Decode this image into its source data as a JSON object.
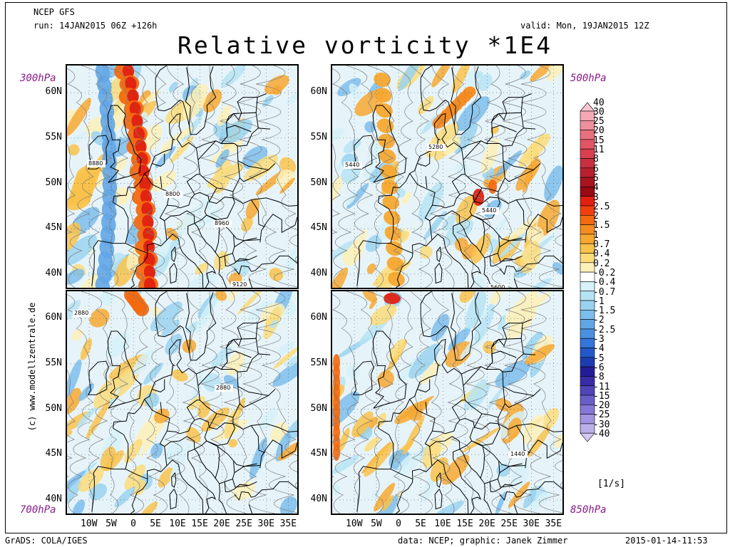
{
  "header": {
    "model": "NCEP GFS",
    "run": "run: 14JAN2015 06Z +126h",
    "valid": "valid: Mon, 19JAN2015 12Z",
    "title": "Relative vorticity *1E4"
  },
  "panels": [
    {
      "level": "300hPa",
      "contour_labels": [
        "8880",
        "8800",
        "8960",
        "9120"
      ]
    },
    {
      "level": "500hPa",
      "contour_labels": [
        "5440",
        "5280",
        "5440",
        "5600"
      ]
    },
    {
      "level": "700hPa",
      "contour_labels": [
        "2880",
        "2880"
      ]
    },
    {
      "level": "850hPa",
      "contour_labels": [
        "1440"
      ]
    }
  ],
  "lat_labels": [
    "60N",
    "55N",
    "50N",
    "45N",
    "40N"
  ],
  "lon_labels": [
    "10W",
    "5W",
    "0",
    "5E",
    "10E",
    "15E",
    "20E",
    "25E",
    "30E",
    "35E"
  ],
  "colorbar": {
    "labels": [
      "40",
      "30",
      "25",
      "20",
      "15",
      "11",
      "8",
      "6",
      "5",
      "4",
      "3",
      "2.5",
      "2",
      "1.5",
      "1",
      "0.7",
      "0.4",
      "0.2",
      "-0.2",
      "-0.4",
      "-0.7",
      "-1",
      "-1.5",
      "-2",
      "-2.5",
      "-3",
      "-4",
      "-5",
      "-6",
      "-8",
      "-11",
      "-15",
      "-20",
      "-25",
      "-30",
      "-40"
    ],
    "colors": [
      "#f6c6cf",
      "#f2a9b5",
      "#ee8f9e",
      "#e8707f",
      "#e05565",
      "#d84050",
      "#c83040",
      "#b82030",
      "#a81420",
      "#980a14",
      "#e02010",
      "#f04010",
      "#f46a10",
      "#f58c20",
      "#f7a830",
      "#f9c24a",
      "#fbdc7a",
      "#fdf0b8",
      "#ffffff",
      "#d6f1f8",
      "#b6e3f3",
      "#9ad2ef",
      "#7cbdeb",
      "#62a6e6",
      "#4a8fe0",
      "#3574d8",
      "#2458c8",
      "#1e3cb0",
      "#241c98",
      "#3a2ca8",
      "#5044b8",
      "#6a5ec8",
      "#8678d6",
      "#a294e2",
      "#bcb0ec",
      "#d2c8f2"
    ],
    "unit": "[1/s]"
  },
  "side_credit": "(c) www.modellzentrale.de",
  "footer": {
    "left": "GrADS: COLA/IGES",
    "middle": "data: NCEP; graphic: Janek Zimmer",
    "right": "2015-01-14-11:53"
  }
}
